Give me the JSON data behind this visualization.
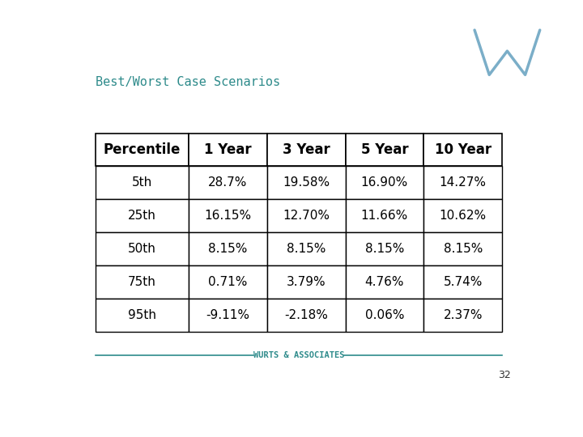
{
  "title": "Best/Worst Case Scenarios",
  "title_color": "#2E8B8B",
  "title_fontsize": 11,
  "footer_text": "WURTS & ASSOCIATES",
  "footer_color": "#2E8B8B",
  "page_number": "32",
  "background_color": "#FFFFFF",
  "headers": [
    "Percentile",
    "1 Year",
    "3 Year",
    "5 Year",
    "10 Year"
  ],
  "rows": [
    [
      "5th",
      "28.7%",
      "19.58%",
      "16.90%",
      "14.27%"
    ],
    [
      "25th",
      "16.15%",
      "12.70%",
      "11.66%",
      "10.62%"
    ],
    [
      "50th",
      "8.15%",
      "8.15%",
      "8.15%",
      "8.15%"
    ],
    [
      "75th",
      "0.71%",
      "3.79%",
      "4.76%",
      "5.74%"
    ],
    [
      "95th",
      "-9.11%",
      "-2.18%",
      "0.06%",
      "2.37%"
    ]
  ],
  "header_bg": "#FFFFFF",
  "header_text_color": "#000000",
  "row_bg": "#FFFFFF",
  "row_text_color": "#000000",
  "border_color": "#000000",
  "header_fontsize": 12,
  "cell_fontsize": 11,
  "logo_color": "#C8E0EC",
  "logo_line_color": "#7BAEC8"
}
